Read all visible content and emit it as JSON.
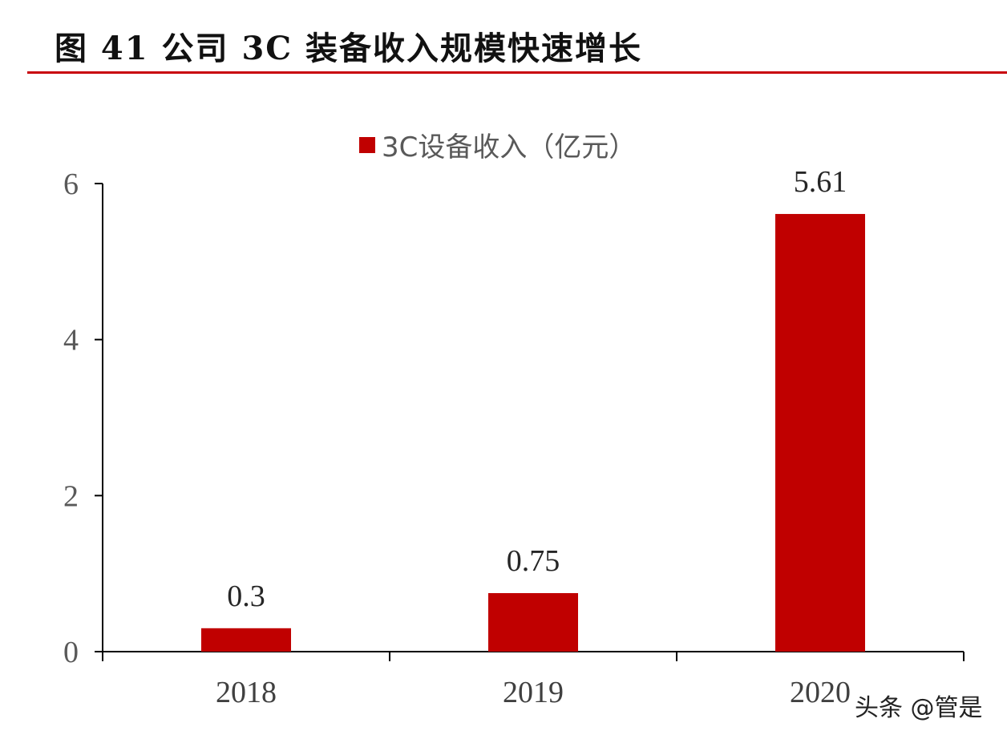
{
  "figure": {
    "title": "图 41  公司 3C 装备收入规模快速增长",
    "watermark": "头条 @管是"
  },
  "colors": {
    "bar": "#c00000",
    "title_rule": "#c8000a",
    "axis": "#000000"
  },
  "chart_data": {
    "type": "bar",
    "categories": [
      "2018",
      "2019",
      "2020"
    ],
    "series": [
      {
        "name": "3C设备收入（亿元）",
        "values": [
          0.3,
          0.75,
          5.61
        ],
        "labels": [
          "0.3",
          "0.75",
          "5.61"
        ]
      }
    ],
    "ylim": [
      0,
      6
    ],
    "yticks": [
      "0",
      "2",
      "4",
      "6"
    ],
    "xlabel": "",
    "ylabel": "",
    "grid": false,
    "legend_position": "top"
  }
}
